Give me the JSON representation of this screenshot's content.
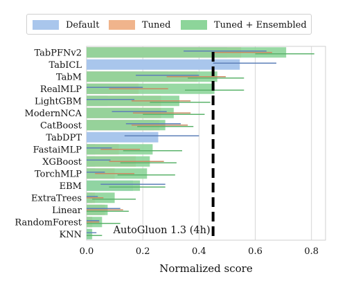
{
  "chart_data": {
    "type": "bar",
    "orientation": "horizontal",
    "xlabel": "Normalized score",
    "xlim": [
      0,
      0.85
    ],
    "xticks": [
      0.0,
      0.2,
      0.4,
      0.6,
      0.8
    ],
    "xtick_labels": [
      "0.0",
      "0.2",
      "0.4",
      "0.6",
      "0.8"
    ],
    "grid": "vertical",
    "legend_position": "top",
    "categories": [
      "TabPFNv2",
      "TabICL",
      "TabM",
      "RealMLP",
      "LightGBM",
      "ModernNCA",
      "CatBoost",
      "TabDPT",
      "FastaiMLP",
      "XGBoost",
      "TorchMLP",
      "EBM",
      "ExtraTrees",
      "Linear",
      "RandomForest",
      "KNN"
    ],
    "series": [
      {
        "name": "Default",
        "color": "#a9c6ec",
        "values": [
          0.5,
          0.545,
          0.29,
          0.085,
          0.075,
          0.185,
          0.24,
          0.255,
          0.03,
          0.03,
          0.03,
          0.165,
          0.02,
          0.055,
          0.02,
          0.015
        ],
        "error_low": [
          0.345,
          0.45,
          0.175,
          0.0,
          0.0,
          0.09,
          0.14,
          0.135,
          0.0,
          0.0,
          0.0,
          0.05,
          0.0,
          0.0,
          0.0,
          0.0
        ],
        "error_high": [
          0.64,
          0.675,
          0.4,
          0.2,
          0.17,
          0.285,
          0.335,
          0.4,
          0.09,
          0.085,
          0.065,
          0.28,
          0.04,
          0.12,
          0.045,
          0.035
        ]
      },
      {
        "name": "Tuned",
        "color": "#f0b48c",
        "values": [
          0.55,
          null,
          0.395,
          0.185,
          0.265,
          0.265,
          0.26,
          null,
          0.115,
          0.175,
          0.1,
          null,
          0.03,
          0.065,
          0.02,
          null
        ],
        "error_low": [
          0.445,
          null,
          0.285,
          0.08,
          0.16,
          0.165,
          0.16,
          null,
          0.05,
          0.08,
          0.03,
          null,
          0.0,
          0.0,
          0.0,
          null
        ],
        "error_high": [
          0.66,
          null,
          0.495,
          0.29,
          0.37,
          0.37,
          0.36,
          null,
          0.19,
          0.275,
          0.17,
          null,
          0.06,
          0.13,
          0.045,
          null
        ]
      },
      {
        "name": "Tuned + Ensembled",
        "color": "#8dd59a",
        "values": [
          0.71,
          null,
          0.465,
          0.455,
          0.33,
          0.31,
          0.28,
          null,
          0.235,
          0.225,
          0.215,
          0.19,
          0.1,
          0.075,
          0.055,
          0.02
        ],
        "error_low": [
          0.6,
          null,
          0.36,
          0.35,
          0.225,
          0.2,
          0.18,
          null,
          0.13,
          0.12,
          0.11,
          0.08,
          0.02,
          0.0,
          0.0,
          0.0
        ],
        "error_high": [
          0.81,
          null,
          0.56,
          0.56,
          0.44,
          0.42,
          0.38,
          null,
          0.34,
          0.32,
          0.315,
          0.28,
          0.175,
          0.15,
          0.12,
          0.055
        ]
      }
    ],
    "reference_line": {
      "label": "AutoGluon 1.3 (4h)",
      "value": 0.45
    }
  }
}
